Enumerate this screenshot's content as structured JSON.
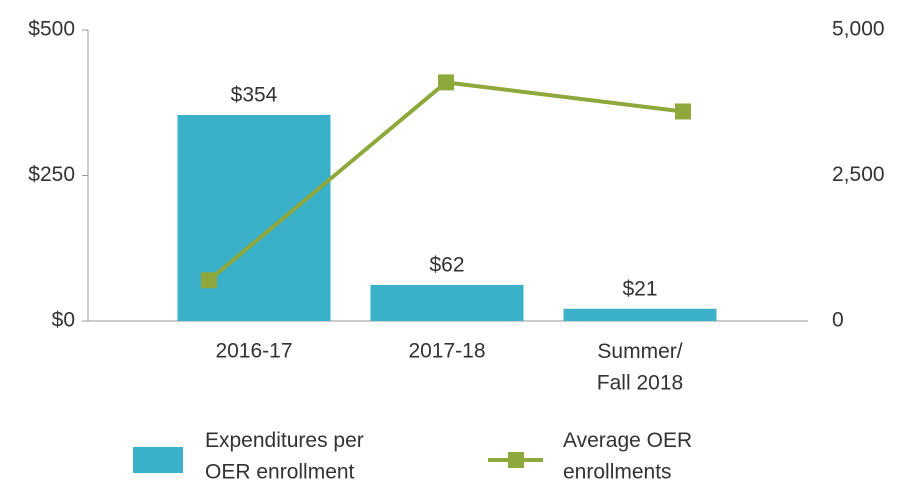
{
  "chart_data": {
    "type": "bar_line",
    "categories": [
      "2016-17",
      "2017-18",
      "Summer/\nFall 2018"
    ],
    "series": [
      {
        "name": "Expenditures per\nOER enrollment",
        "type": "bar",
        "color": "#3ab0c9",
        "values": [
          354,
          62,
          21
        ],
        "value_labels": [
          "$354",
          "$62",
          "$21"
        ]
      },
      {
        "name": "Average OER\nenrollments",
        "type": "line",
        "color": "#8ea83c",
        "axis": "y2",
        "values": [
          700,
          4100,
          3600
        ]
      }
    ],
    "ylim": [
      0,
      500
    ],
    "yticks": [
      {
        "value": 0,
        "label": "$0"
      },
      {
        "value": 250,
        "label": "$250"
      },
      {
        "value": 500,
        "label": "$500"
      }
    ],
    "y2lim": [
      0,
      5000
    ],
    "y2ticks": [
      0,
      {
        "value": 2500,
        "label": "2,500"
      },
      {
        "value": 5000,
        "label": "5,000"
      }
    ],
    "legend": "bottom"
  }
}
